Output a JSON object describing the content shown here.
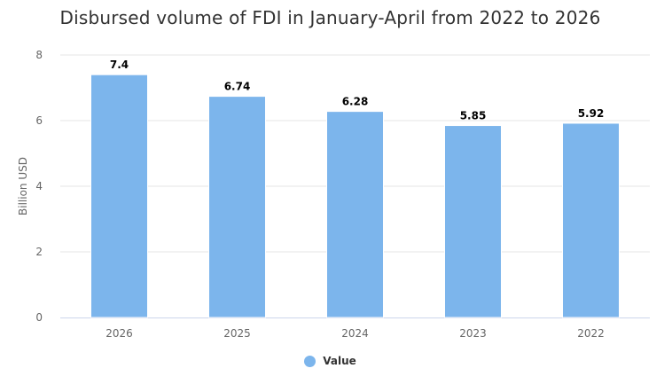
{
  "chart_data": {
    "type": "bar",
    "title": "Disbursed volume of FDI in January-April from 2022 to 2026",
    "xlabel": "",
    "ylabel": "Billion USD",
    "categories": [
      "2026",
      "2025",
      "2024",
      "2023",
      "2022"
    ],
    "series": [
      {
        "name": "Value",
        "values": [
          7.4,
          6.74,
          6.28,
          5.85,
          5.92
        ],
        "color": "#7cb5ec"
      }
    ],
    "data_labels": [
      "7.4",
      "6.74",
      "6.28",
      "5.85",
      "5.92"
    ],
    "ylim": [
      0,
      8
    ],
    "yticks": [
      0,
      2,
      4,
      6,
      8
    ],
    "grid": true,
    "legend": "bottom-center"
  }
}
